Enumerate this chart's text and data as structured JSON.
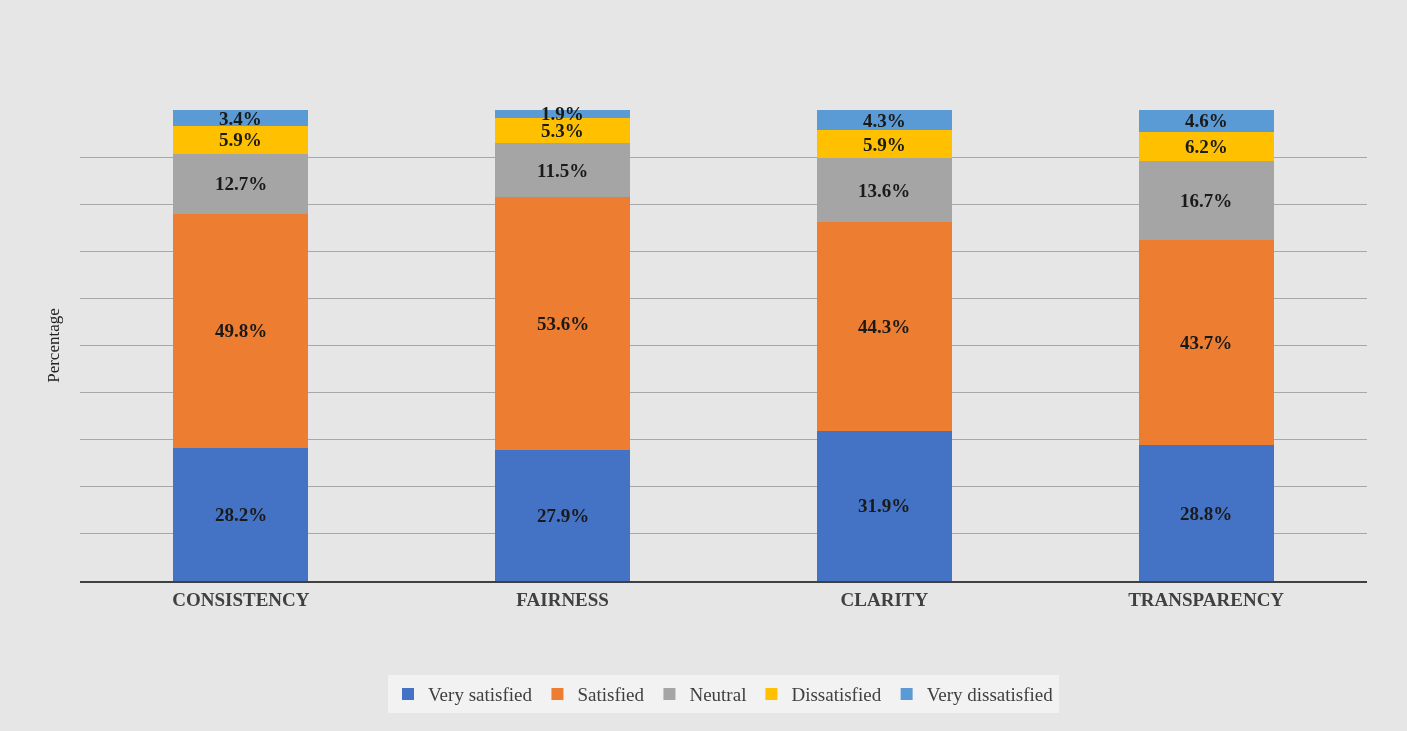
{
  "chart_data": {
    "type": "bar",
    "stacked": true,
    "ylabel": "Percentage",
    "categories": [
      "CONSISTENCY",
      "FAIRNESS",
      "CLARITY",
      "TRANSPARENCY"
    ],
    "series": [
      {
        "name": "Very satisfied",
        "color": "#4472c4",
        "values": [
          28.2,
          27.9,
          31.9,
          28.8
        ],
        "value_labels": [
          "28.2%",
          "27.9%",
          "31.9%",
          "28.8%"
        ]
      },
      {
        "name": "Satisfied",
        "color": "#ed7d31",
        "values": [
          49.8,
          53.6,
          44.3,
          43.7
        ],
        "value_labels": [
          "49.8%",
          "53.6%",
          "44.3%",
          "43.7%"
        ]
      },
      {
        "name": "Neutral",
        "color": "#a5a5a5",
        "values": [
          12.7,
          11.5,
          13.6,
          16.7
        ],
        "value_labels": [
          "12.7%",
          "11.5%",
          "13.6%",
          "16.7%"
        ]
      },
      {
        "name": "Dissatisfied",
        "color": "#ffc000",
        "values": [
          5.9,
          5.3,
          5.9,
          6.2
        ],
        "value_labels": [
          "5.9%",
          "5.3%",
          "5.9%",
          "6.2%"
        ]
      },
      {
        "name": "Very dissatisfied",
        "color": "#5b9bd5",
        "values": [
          3.4,
          1.9,
          4.3,
          4.6
        ],
        "value_labels": [
          "3.4%",
          "1.9%",
          "4.3%",
          "4.6%"
        ]
      }
    ],
    "ylim": [
      0,
      100
    ],
    "yticks": [
      {
        "value": 0,
        "label": null
      },
      {
        "value": 10,
        "label": null
      },
      {
        "value": 20,
        "label": null
      },
      {
        "value": 30,
        "label": null
      },
      {
        "value": 40,
        "label": null
      },
      {
        "value": 50,
        "label": null
      },
      {
        "value": 60,
        "label": null
      },
      {
        "value": 70,
        "label": null
      },
      {
        "value": 80,
        "label": null
      },
      {
        "value": 90,
        "label": null
      }
    ],
    "tick_labels": "x",
    "grid": "y",
    "legend": "bottom"
  }
}
